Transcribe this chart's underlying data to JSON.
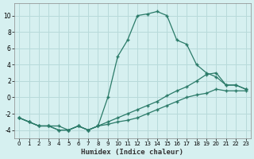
{
  "xlabel": "Humidex (Indice chaleur)",
  "background_color": "#d6f0f0",
  "grid_color": "#b8dada",
  "line_color": "#2a7a68",
  "xlim": [
    -0.5,
    23.5
  ],
  "ylim": [
    -5,
    11.5
  ],
  "xticks": [
    0,
    1,
    2,
    3,
    4,
    5,
    6,
    7,
    8,
    9,
    10,
    11,
    12,
    13,
    14,
    15,
    16,
    17,
    18,
    19,
    20,
    21,
    22,
    23
  ],
  "yticks": [
    -4,
    -2,
    0,
    2,
    4,
    6,
    8,
    10
  ],
  "series": [
    {
      "x": [
        0,
        1,
        2,
        3,
        4,
        5,
        6,
        7,
        8,
        9,
        10,
        11,
        12,
        13,
        14,
        15,
        16,
        17,
        18,
        19,
        20,
        21,
        22,
        23
      ],
      "y": [
        -2.5,
        -3,
        -3.5,
        -3.5,
        -3.5,
        -4,
        -3.5,
        -4,
        -3.5,
        0,
        5,
        7,
        10,
        10.2,
        10.5,
        10,
        7,
        6.5,
        4,
        3,
        2.5,
        1.5,
        1.5,
        1
      ],
      "style": "solid_markers"
    },
    {
      "x": [
        0,
        1,
        2,
        3,
        4,
        5,
        6,
        7,
        8,
        9,
        10,
        11,
        12,
        13,
        14,
        15,
        16,
        17,
        18,
        19,
        20,
        21,
        22,
        23
      ],
      "y": [
        -2.5,
        -3,
        -3.5,
        -3.5,
        -4,
        -4,
        -3.5,
        -4,
        -3.5,
        -3,
        -2.5,
        -2,
        -1.5,
        -1,
        -0.5,
        0.2,
        0.8,
        1.3,
        2,
        2.8,
        3,
        1.5,
        1.5,
        1
      ],
      "style": "solid_markers"
    },
    {
      "x": [
        0,
        1,
        2,
        3,
        4,
        5,
        6,
        7,
        8,
        9,
        10,
        11,
        12,
        13,
        14,
        15,
        16,
        17,
        18,
        19,
        20,
        21,
        22,
        23
      ],
      "y": [
        -2.5,
        -3,
        -3.5,
        -3.5,
        -4,
        -4,
        -3.5,
        -4,
        -3.5,
        -3.3,
        -3,
        -2.8,
        -2.5,
        -2,
        -1.5,
        -1,
        -0.5,
        0,
        0.3,
        0.5,
        1,
        0.8,
        0.8,
        0.8
      ],
      "style": "solid_markers"
    }
  ]
}
